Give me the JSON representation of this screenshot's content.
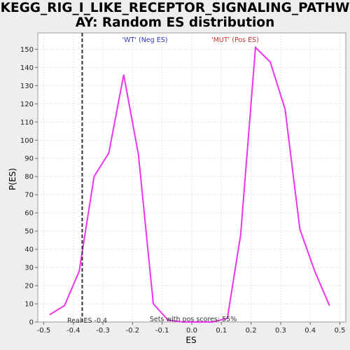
{
  "chart_data": {
    "type": "line",
    "title_line1": "KEGG_RIG_I_LIKE_RECEPTOR_SIGNALING_PATHW",
    "title_line2": "AY: Random ES distribution",
    "xlabel": "ES",
    "ylabel": "P(ES)",
    "xlim": [
      -0.52,
      0.52
    ],
    "ylim": [
      0,
      159
    ],
    "x_ticks": [
      -0.5,
      -0.4,
      -0.3,
      -0.2,
      -0.1,
      0.0,
      0.1,
      0.2,
      0.3,
      0.4,
      0.5
    ],
    "x_tick_labels": [
      "-0.5",
      "-0.4",
      "-0.3",
      "-0.2",
      "-0.1",
      "0.0",
      "0.1",
      "0.2",
      "0.3",
      "0.4",
      "0.5"
    ],
    "y_ticks": [
      0,
      10,
      20,
      30,
      40,
      50,
      60,
      70,
      80,
      90,
      100,
      110,
      120,
      130,
      140,
      150
    ],
    "grid": true,
    "series": [
      {
        "color": "#ee33ee",
        "x": [
          -0.48,
          -0.43,
          -0.38,
          -0.33,
          -0.28,
          -0.23,
          -0.18,
          -0.13,
          -0.08,
          -0.03,
          0.02,
          0.07,
          0.12,
          0.165,
          0.215,
          0.265,
          0.315,
          0.365,
          0.415,
          0.465
        ],
        "y": [
          4,
          9,
          28,
          80,
          93,
          136,
          92,
          10,
          1,
          0,
          0,
          0,
          2,
          48,
          151,
          143,
          117,
          51,
          28,
          9
        ]
      }
    ],
    "real_es": -0.37,
    "real_es_label": "Real ES -0.4",
    "label_neg": "'WT' (Neg ES)",
    "label_pos": "'MUT' (Pos ES)",
    "label_neg_color": "#3333bb",
    "label_pos_color": "#cc3333",
    "sets_label": "Sets with pos scores: 55%"
  }
}
